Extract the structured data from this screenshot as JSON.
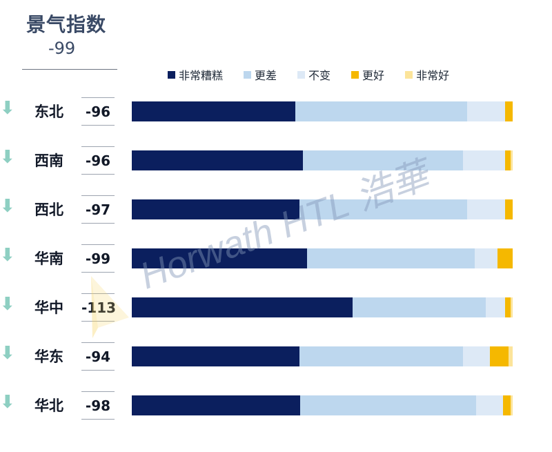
{
  "header": {
    "title": "景气指数",
    "value": "-99"
  },
  "watermark": "Horwath HTL 浩華",
  "colors": {
    "very_bad": "#0b1f5e",
    "worse": "#bdd7ee",
    "unchanged": "#dde9f6",
    "better": "#f5b800",
    "very_good": "#fce49a",
    "arrow": "#8ecfc2"
  },
  "chart_data": {
    "type": "bar",
    "stacked": true,
    "orientation": "horizontal",
    "normalized": true,
    "categories": [
      "东北",
      "西南",
      "西北",
      "华南",
      "华中",
      "华东",
      "华北"
    ],
    "scores": [
      "-96",
      "-96",
      "-97",
      "-99",
      "-113",
      "-94",
      "-98"
    ],
    "trend": [
      "down",
      "down",
      "down",
      "down",
      "down",
      "down",
      "down"
    ],
    "legend_placement": "top",
    "series": [
      {
        "name": "非常糟糕",
        "color": "#0b1f5e",
        "values": [
          43,
          45,
          44,
          46,
          58,
          44,
          44
        ]
      },
      {
        "name": "更差",
        "color": "#bdd7ee",
        "values": [
          45,
          42,
          44,
          44,
          35,
          43,
          46
        ]
      },
      {
        "name": "不变",
        "color": "#dde9f6",
        "values": [
          10,
          11,
          10,
          6,
          5,
          7,
          7
        ]
      },
      {
        "name": "更好",
        "color": "#f5b800",
        "values": [
          2,
          1.5,
          2,
          4,
          1.5,
          5,
          2
        ]
      },
      {
        "name": "非常好",
        "color": "#fce49a",
        "values": [
          0,
          0.5,
          0,
          0,
          0.5,
          1,
          0.5
        ]
      }
    ]
  }
}
